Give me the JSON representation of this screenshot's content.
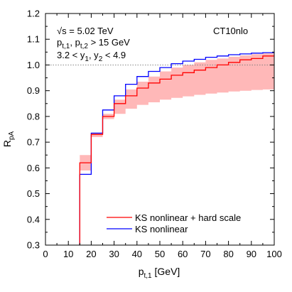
{
  "chart_data": {
    "type": "line",
    "step": true,
    "title": "",
    "xlabel": {
      "main": "p",
      "sub": "t,1",
      "unit": " [GeV]"
    },
    "ylabel": {
      "main": "R",
      "sub": "pA"
    },
    "xlim": [
      0,
      100
    ],
    "ylim": [
      0.3,
      1.2
    ],
    "xticks": [
      0,
      10,
      20,
      30,
      40,
      50,
      60,
      70,
      80,
      90,
      100
    ],
    "yticks": [
      0.3,
      0.4,
      0.5,
      0.6,
      0.7,
      0.8,
      0.9,
      1.0,
      1.1,
      1.2
    ],
    "ytick_labels": [
      "0.3",
      "0.4",
      "0.5",
      "0.6",
      "0.7",
      "0.8",
      "0.9",
      "1.0",
      "1.1",
      "1.2"
    ],
    "reference_line": 1.0,
    "annotations": {
      "energy": "√s = 5.02 TeV",
      "cuts_pt": {
        "p1": "p",
        "s1": "t,1",
        "mid": ", p",
        "s2": "t,2",
        "end": " > 15 GeV"
      },
      "cuts_y": {
        "a": "3.2 < y",
        "s1": "1",
        "mid": ", y",
        "s2": "2",
        "end": " < 4.9"
      },
      "pdf": "CT10nlo"
    },
    "bin_edges": [
      15,
      20,
      25,
      30,
      35,
      40,
      45,
      50,
      55,
      60,
      65,
      70,
      75,
      80,
      85,
      90,
      95,
      100
    ],
    "series": [
      {
        "name": "KS nonlinear + hard scale",
        "color": "#ff0000",
        "values": [
          0.62,
          0.73,
          0.8,
          0.85,
          0.88,
          0.91,
          0.93,
          0.945,
          0.96,
          0.97,
          0.98,
          0.99,
          1.0,
          1.01,
          1.02,
          1.025,
          1.035
        ]
      },
      {
        "name": "KS nonlinear",
        "color": "#0000ff",
        "values": [
          0.575,
          0.735,
          0.825,
          0.88,
          0.925,
          0.955,
          0.975,
          0.99,
          1.005,
          1.015,
          1.022,
          1.03,
          1.035,
          1.04,
          1.043,
          1.046,
          1.048
        ]
      }
    ],
    "band": {
      "color": "#ffb8b8",
      "lower": [
        0.59,
        0.72,
        0.79,
        0.81,
        0.83,
        0.845,
        0.855,
        0.865,
        0.872,
        0.878,
        0.884,
        0.889,
        0.893,
        0.897,
        0.9,
        0.903,
        0.905
      ],
      "upper": [
        0.65,
        0.735,
        0.81,
        0.865,
        0.905,
        0.935,
        0.955,
        0.975,
        0.99,
        1.0,
        1.01,
        1.02,
        1.025,
        1.032,
        1.037,
        1.042,
        1.045
      ]
    },
    "legend": {
      "position": "bottom-right",
      "entries": [
        "KS nonlinear + hard scale",
        "KS nonlinear"
      ]
    }
  }
}
